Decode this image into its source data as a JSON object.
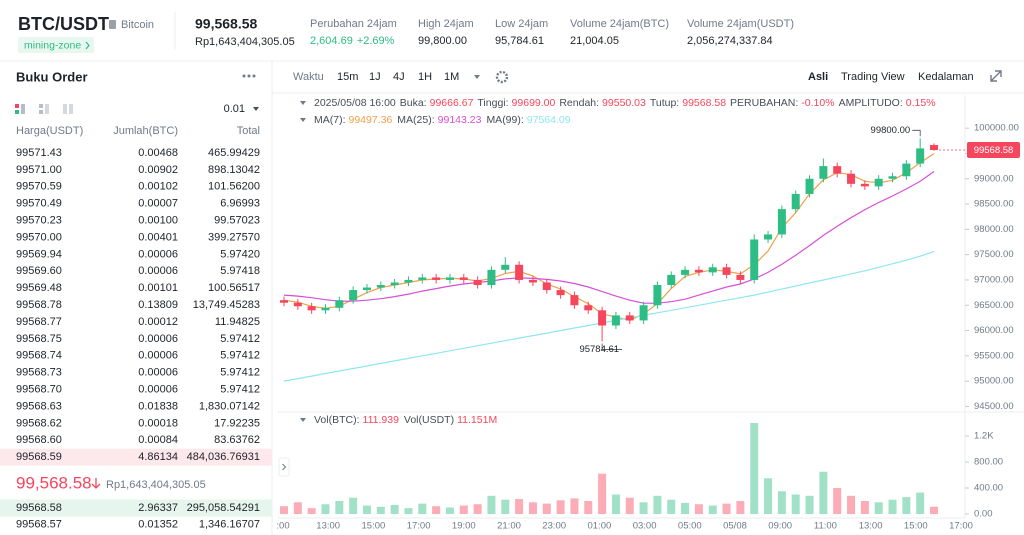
{
  "header": {
    "pair": "BTC/USDT",
    "name": "Bitcoin",
    "tag": "mining-zone",
    "price": "99,568.58",
    "price_idr": "Rp1,643,404,305.05",
    "stats": [
      {
        "label": "Perubahan 24jam",
        "value": "2,604.69",
        "change": "+2.69%"
      },
      {
        "label": "High 24jam",
        "value": "99,800.00"
      },
      {
        "label": "Low 24jam",
        "value": "95,784.61"
      },
      {
        "label": "Volume 24jam(BTC)",
        "value": "21,004.05"
      },
      {
        "label": "Volume 24jam(USDT)",
        "value": "2,056,274,337.84"
      }
    ]
  },
  "order_book": {
    "title": "Buku Order",
    "precision": "0.01",
    "columns": [
      "Harga(USDT)",
      "Jumlah(BTC)",
      "Total"
    ],
    "asks": [
      [
        "99571.43",
        "0.00468",
        "465.99429"
      ],
      [
        "99571.00",
        "0.00902",
        "898.13042"
      ],
      [
        "99570.59",
        "0.00102",
        "101.56200"
      ],
      [
        "99570.49",
        "0.00007",
        "6.96993"
      ],
      [
        "99570.23",
        "0.00100",
        "99.57023"
      ],
      [
        "99570.00",
        "0.00401",
        "399.27570"
      ],
      [
        "99569.94",
        "0.00006",
        "5.97420"
      ],
      [
        "99569.60",
        "0.00006",
        "5.97418"
      ],
      [
        "99569.48",
        "0.00101",
        "100.56517"
      ],
      [
        "99568.78",
        "0.13809",
        "13,749.45283"
      ],
      [
        "99568.77",
        "0.00012",
        "11.94825"
      ],
      [
        "99568.75",
        "0.00006",
        "5.97412"
      ],
      [
        "99568.74",
        "0.00006",
        "5.97412"
      ],
      [
        "99568.73",
        "0.00006",
        "5.97412"
      ],
      [
        "99568.70",
        "0.00006",
        "5.97412"
      ],
      [
        "99568.63",
        "0.01838",
        "1,830.07142"
      ],
      [
        "99568.62",
        "0.00018",
        "17.92235"
      ],
      [
        "99568.60",
        "0.00084",
        "83.63762"
      ],
      [
        "99568.59",
        "4.86134",
        "484,036.76931"
      ]
    ],
    "last_price": "99,568.58",
    "last_price_idr": "Rp1,643,404,305.05",
    "bids": [
      [
        "99568.58",
        "2.96337",
        "295,058.54291"
      ],
      [
        "99568.57",
        "0.01352",
        "1,346.16707"
      ]
    ]
  },
  "toolbar": {
    "time_label": "Waktu",
    "intervals": [
      "15m",
      "1J",
      "4J",
      "1H",
      "1M"
    ],
    "views": [
      "Asli",
      "Trading View",
      "Kedalaman"
    ]
  },
  "chart_data": {
    "type": "candlestick",
    "date": "2025/05/08 16:00",
    "info": [
      {
        "label": "Buka:",
        "value": "99666.67"
      },
      {
        "label": "Tinggi:",
        "value": "99699.00"
      },
      {
        "label": "Rendah:",
        "value": "99550.03"
      },
      {
        "label": "Tutup:",
        "value": "99568.58"
      },
      {
        "label": "PERUBAHAN:",
        "value": "-0.10%"
      },
      {
        "label": "AMPLITUDO:",
        "value": "0.15%"
      }
    ],
    "x_labels": [
      ":00",
      "13:00",
      "15:00",
      "17:00",
      "19:00",
      "21:00",
      "23:00",
      "01:00",
      "03:00",
      "05:00",
      "05/08",
      "09:00",
      "11:00",
      "13:00",
      "15:00",
      "17:00"
    ],
    "open": [
      96600,
      96550,
      96480,
      96400,
      96450,
      96600,
      96800,
      96850,
      96900,
      96950,
      97000,
      97050,
      97000,
      97050,
      97000,
      96900,
      97200,
      97300,
      97000,
      96950,
      96800,
      96700,
      96500,
      96400,
      96100,
      96300,
      96200,
      96500,
      96900,
      97100,
      97200,
      97150,
      97250,
      97100,
      97000,
      97800,
      97900,
      98400,
      98700,
      99000,
      99250,
      99100,
      98900,
      98850,
      99000,
      99050,
      99300,
      99666.67
    ],
    "high": [
      96670,
      96620,
      96550,
      96520,
      96670,
      96870,
      96920,
      96970,
      97020,
      97070,
      97120,
      97120,
      97120,
      97120,
      97070,
      97270,
      97450,
      97370,
      97070,
      97020,
      96870,
      96770,
      96570,
      96470,
      96370,
      96370,
      96570,
      96970,
      97170,
      97270,
      97270,
      97320,
      97320,
      97170,
      97900,
      97970,
      98470,
      98770,
      99070,
      99400,
      99320,
      99170,
      98970,
      99070,
      99120,
      99370,
      99800.0,
      99699.0
    ],
    "low": [
      96480,
      96410,
      96330,
      96330,
      96380,
      96530,
      96730,
      96780,
      96830,
      96880,
      96930,
      96930,
      96930,
      96930,
      96830,
      96830,
      97130,
      96930,
      96880,
      96730,
      96630,
      96430,
      96330,
      95784.61,
      96030,
      96130,
      96130,
      96430,
      96830,
      97030,
      97080,
      97080,
      97030,
      96930,
      96930,
      97730,
      97830,
      98330,
      98630,
      98930,
      99030,
      98830,
      98780,
      98780,
      98930,
      98980,
      99230,
      99550.03
    ],
    "close": [
      96550,
      96480,
      96400,
      96450,
      96600,
      96800,
      96850,
      96900,
      96950,
      97000,
      97050,
      97000,
      97050,
      97000,
      96900,
      97200,
      97300,
      97000,
      96950,
      96800,
      96700,
      96500,
      96400,
      96100,
      96300,
      96200,
      96500,
      96900,
      97100,
      97200,
      97150,
      97250,
      97100,
      97000,
      97800,
      97900,
      98400,
      98700,
      99000,
      99250,
      99100,
      98900,
      98850,
      99000,
      99050,
      99300,
      99600,
      99568.58
    ],
    "up_color": "#2ebd85",
    "down_color": "#f6465d",
    "ylim": [
      94390,
      100300
    ],
    "yticks": [
      {
        "value": 94500,
        "label": "94500.00"
      },
      {
        "value": 95000,
        "label": "95000.00"
      },
      {
        "value": 95500,
        "label": "95500.00"
      },
      {
        "value": 96000,
        "label": "96000.00"
      },
      {
        "value": 96500,
        "label": "96500.00"
      },
      {
        "value": 97000,
        "label": "97000.00"
      },
      {
        "value": 97500,
        "label": "97500.00"
      },
      {
        "value": 98000,
        "label": "98000.00"
      },
      {
        "value": 98500,
        "label": "98500.00"
      },
      {
        "value": 99000,
        "label": "99000.00"
      },
      {
        "value": 99500,
        "label": "99500.00"
      },
      {
        "value": 100000,
        "label": "100000.00"
      }
    ],
    "high_label": "99800.00",
    "low_label": "95784.61",
    "ma": [
      {
        "name": "MA(7):",
        "last": "99497.36",
        "color": "#f0a04b",
        "values": [
          96600,
          96560,
          96480,
          96440,
          96480,
          96620,
          96750,
          96850,
          96900,
          96950,
          97000,
          97020,
          97030,
          97020,
          96980,
          97030,
          97130,
          97170,
          97080,
          96920,
          96820,
          96670,
          96530,
          96330,
          96270,
          96200,
          96330,
          96530,
          96830,
          97070,
          97150,
          97200,
          97170,
          97120,
          97300,
          97570,
          98030,
          98330,
          98700,
          98980,
          99120,
          99080,
          98950,
          98920,
          98970,
          99120,
          99320,
          99497.36
        ]
      },
      {
        "name": "MA(25):",
        "last": "99143.23",
        "color": "#d74fd6",
        "values": [
          96700,
          96680,
          96650,
          96610,
          96580,
          96580,
          96600,
          96630,
          96670,
          96720,
          96780,
          96830,
          96880,
          96920,
          96950,
          96980,
          97020,
          97040,
          97030,
          97010,
          96980,
          96930,
          96860,
          96770,
          96680,
          96600,
          96540,
          96540,
          96570,
          96620,
          96700,
          96780,
          96860,
          96920,
          97020,
          97150,
          97310,
          97490,
          97680,
          97880,
          98060,
          98230,
          98390,
          98530,
          98660,
          98800,
          98950,
          99143.23
        ]
      },
      {
        "name": "MA(99):",
        "last": "97564.09",
        "color": "#8fe6f0",
        "values": [
          95000,
          95050,
          95100,
          95150,
          95200,
          95250,
          95300,
          95350,
          95400,
          95450,
          95500,
          95550,
          95600,
          95650,
          95700,
          95750,
          95800,
          95850,
          95900,
          95950,
          96000,
          96050,
          96100,
          96150,
          96200,
          96250,
          96300,
          96350,
          96400,
          96450,
          96500,
          96550,
          96600,
          96650,
          96700,
          96760,
          96820,
          96880,
          96940,
          97000,
          97060,
          97120,
          97180,
          97250,
          97320,
          97390,
          97470,
          97564.09
        ]
      }
    ],
    "volume": {
      "name": "Vol(BTC):",
      "last": "111.939",
      "name2": "Vol(USDT)",
      "last2": "11.151M",
      "values": [
        120,
        180,
        90,
        150,
        200,
        250,
        130,
        110,
        140,
        90,
        160,
        120,
        100,
        130,
        150,
        280,
        220,
        230,
        180,
        160,
        210,
        240,
        200,
        620,
        300,
        250,
        180,
        280,
        220,
        170,
        150,
        130,
        160,
        200,
        1400,
        550,
        350,
        300,
        280,
        650,
        400,
        280,
        200,
        180,
        220,
        260,
        330,
        111.939
      ],
      "ylim": [
        0,
        1446
      ],
      "yticks": [
        {
          "value": 0,
          "label": "0.00"
        },
        {
          "value": 400,
          "label": "400.00"
        },
        {
          "value": 800,
          "label": "800.00"
        },
        {
          "value": 1200,
          "label": "1.2K"
        }
      ]
    }
  }
}
